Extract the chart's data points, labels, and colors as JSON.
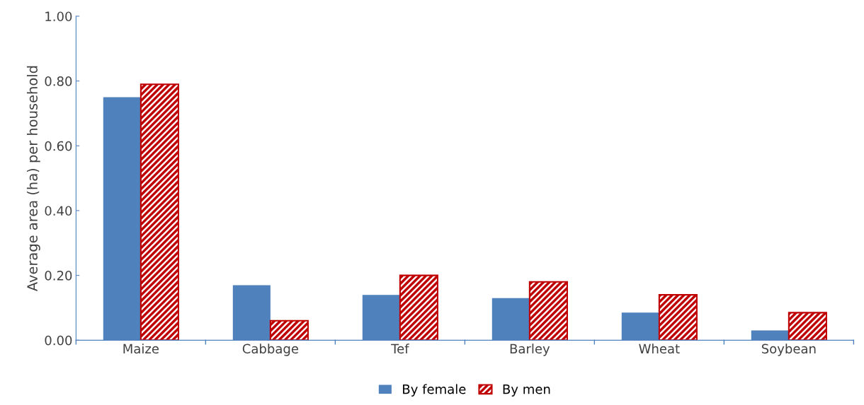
{
  "chart_data": {
    "type": "bar",
    "ylabel": "Average area (ha) per household",
    "categories": [
      "Maize",
      "Cabbage",
      "Tef",
      "Barley",
      "Wheat",
      "Soybean"
    ],
    "series": [
      {
        "name": "By female",
        "color": "#4f81bd",
        "values": [
          0.75,
          0.17,
          0.14,
          0.13,
          0.085,
          0.03
        ]
      },
      {
        "name": "By men",
        "color": "#c00000",
        "values": [
          0.79,
          0.06,
          0.2,
          0.18,
          0.14,
          0.085
        ]
      }
    ],
    "ylim": [
      0,
      1
    ],
    "yticks": [
      {
        "value": 0,
        "label": "0.00"
      },
      {
        "value": 0.2,
        "label": "0.20"
      },
      {
        "value": 0.4,
        "label": "0.40"
      },
      {
        "value": 0.6,
        "label": "0.60"
      },
      {
        "value": 0.8,
        "label": "0.80"
      },
      {
        "value": 1,
        "label": "1.00"
      }
    ],
    "grid": false,
    "legend": "bottom"
  }
}
